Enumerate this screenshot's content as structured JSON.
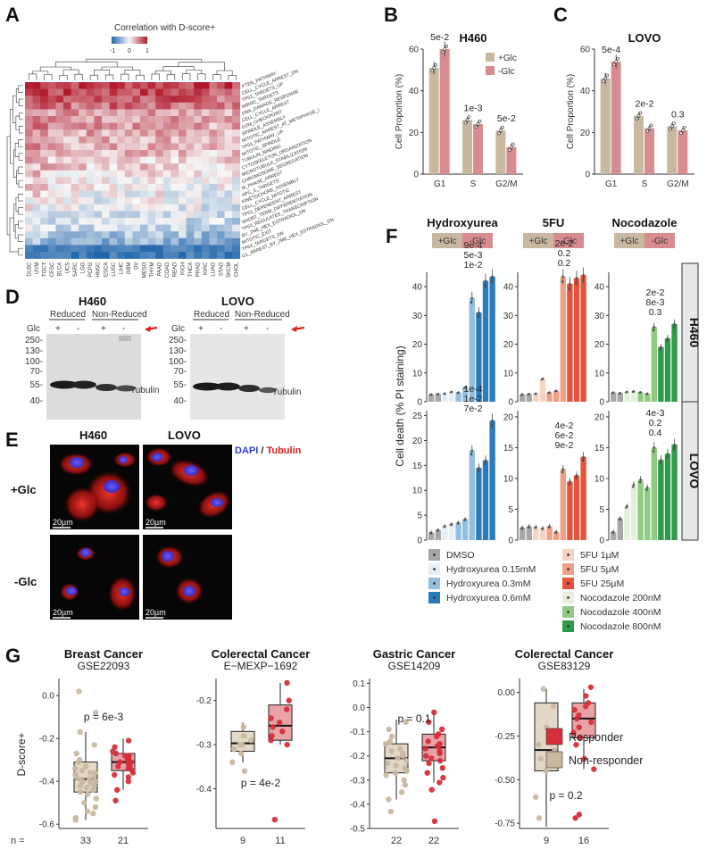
{
  "panel_labels": {
    "A": "A",
    "B": "B",
    "C": "C",
    "D": "D",
    "E": "E",
    "F": "F",
    "G": "G"
  },
  "colors": {
    "glc_pos": "#c9b8a0",
    "glc_neg": "#d98c8f",
    "responder": "#d62f3a",
    "non_responder": "#c9b8a0",
    "box_responder": "#e7a3a6",
    "box_non": "#e3d8c6",
    "heat_pos": "#b2182b",
    "heat_neg": "#2166ac"
  },
  "panelA": {
    "legend_title": "Correlation with D-score+",
    "legend_ticks": [
      "-1",
      "0",
      "1"
    ],
    "rows": [
      "PTEN_PATHWAY",
      "CELL_CYCLE_ARREST_DN",
      "TP53_TARGETS_UP",
      "MIRI92_TARGETS",
      "DNA_DAMAGE_RESPONSE",
      "CELL_CYCLE_ARREST",
      "G2M_CHECKPOINT",
      "SPINDLE_ASSEMBLY",
      "MITOTIC_ARREST_AT_METAPHASE_I",
      "TP53_PATHWAY_UP",
      "MITOTIC_SPINDLE",
      "TUBULIN_BINDING",
      "CYTOSKELETON_ORGANIZATION",
      "MICROTUBULE_STABILIZATION",
      "CHROMOSOME_SEGREGATION",
      "M_PHASE_ARREST",
      "APC_C_TARGETS",
      "KINETOCHORE_ASSEMBLY",
      "CELL_CYCLE_MITOTIC",
      "TP53_DEPENDENT_ARREST",
      "SHORT_TERM_DIFFERENTIATION",
      "TP53_REGULATES_TRANSCRIPTION",
      "BY_2ME_HEX_ESTRADIOL_DN",
      "MITOTIC_EXIT",
      "TP53_TARGETS_DN",
      "G1_ARREST_BY_2ME_HEX_ESTRADIOL_DN"
    ],
    "columns": [
      "DLBC",
      "UVM",
      "TGCT",
      "CESC",
      "BLCA",
      "UCS",
      "SARC",
      "LGG",
      "PCPG",
      "HNSC",
      "ESCA",
      "LUSC",
      "LIHC",
      "GBM",
      "OV",
      "MESO",
      "THYM",
      "PAAD",
      "COAD",
      "READ",
      "KICH",
      "THCA",
      "PRAD",
      "KIRC",
      "LUAD",
      "STAD",
      "SKCM",
      "CHOL"
    ]
  },
  "chart_data": [
    {
      "id": "B",
      "type": "bar",
      "title": "H460",
      "xlabel": "",
      "ylabel": "Cell Proportion (%)",
      "ylim": [
        0,
        60
      ],
      "categories": [
        "G1",
        "S",
        "G2/M"
      ],
      "series": [
        {
          "name": "+Glc",
          "values": [
            51,
            26,
            21
          ]
        },
        {
          "name": "-Glc",
          "values": [
            60,
            24,
            13
          ]
        }
      ],
      "annotations": [
        "5e-2",
        "1e-3",
        "5e-2"
      ]
    },
    {
      "id": "C",
      "type": "bar",
      "title": "LOVO",
      "xlabel": "",
      "ylabel": "Cell Proportion (%)",
      "ylim": [
        0,
        60
      ],
      "categories": [
        "G1",
        "S",
        "G2/M"
      ],
      "series": [
        {
          "name": "+Glc",
          "values": [
            46,
            28,
            23
          ]
        },
        {
          "name": "-Glc",
          "values": [
            54,
            22,
            21
          ]
        }
      ],
      "annotations": [
        "5e-4",
        "2e-2",
        "0.3"
      ]
    },
    {
      "id": "F",
      "type": "bar",
      "ylabel": "Cell death  (% PI staining)",
      "column_titles": [
        "Hydroxyurea",
        "5FU",
        "Nocodazole"
      ],
      "row_labels": [
        "H460",
        "LOVO"
      ],
      "condition_labels": [
        "+Glc",
        "-Glc"
      ],
      "legend_groups": [
        [
          "DMSO",
          "Hydroxyurea 0.15mM",
          "Hydroxyurea 0.3mM",
          "Hydroxyurea 0.6mM"
        ],
        [
          "5FU 1µM",
          "5FU 5µM",
          "5FU 25µM"
        ],
        [
          "Nocodazole 200nM",
          "Nocodazole 400nM",
          "Nocodazole 800nM"
        ]
      ],
      "legend_colors": [
        [
          "#a7a7a7",
          "#e6eef6",
          "#93bfdd",
          "#2a7cbb"
        ],
        [
          "#f6d4c4",
          "#f1a084",
          "#e4533a"
        ],
        [
          "#e3f1dc",
          "#8fcc82",
          "#2d9b4a"
        ]
      ],
      "subplots": [
        {
          "row": 0,
          "col": 0,
          "ylim": [
            0,
            45
          ],
          "ticks": [
            0,
            10,
            20,
            30,
            40
          ],
          "glc_pos": [
            2.5,
            2.8,
            3.2,
            31
          ],
          "glc_neg": [
            2.7,
            3.4,
            5,
            42
          ],
          "extra": [
            36,
            43.5
          ],
          "annotations": [
            "9e-4",
            "5e-3",
            "1e-2"
          ]
        },
        {
          "row": 0,
          "col": 1,
          "ylim": [
            0,
            45
          ],
          "ticks": [
            0,
            10,
            20,
            30,
            40
          ],
          "glc_pos": [
            2.5,
            2.8,
            3.2,
            41
          ],
          "glc_neg": [
            2.7,
            8,
            3.8,
            43
          ],
          "extra": [
            43.5,
            44
          ],
          "annotations": [
            "2e-2",
            "0.2",
            "0.2"
          ]
        },
        {
          "row": 0,
          "col": 2,
          "ylim": [
            0,
            45
          ],
          "ticks": [
            0,
            10,
            20,
            30,
            40
          ],
          "glc_pos": [
            3.2,
            3.4,
            3.3,
            19
          ],
          "glc_neg": [
            3,
            3.6,
            2.8,
            22
          ],
          "extra": [
            26,
            27
          ],
          "annotations": [
            "2e-2",
            "8e-3",
            "0.3"
          ]
        },
        {
          "row": 1,
          "col": 0,
          "ylim": [
            0,
            26
          ],
          "ticks": [
            0,
            5,
            10,
            15,
            20,
            25
          ],
          "glc_pos": [
            1.5,
            2.8,
            3.5,
            14.5
          ],
          "glc_neg": [
            2,
            3.2,
            4.2,
            16
          ],
          "extra": [
            18,
            24
          ],
          "annotations": [
            "1e-4",
            "1e-2",
            "7e-2"
          ]
        },
        {
          "row": 1,
          "col": 1,
          "ylim": [
            0,
            21
          ],
          "ticks": [
            0,
            5,
            10,
            15,
            20
          ],
          "glc_pos": [
            2,
            2.1,
            2.2,
            9.5
          ],
          "glc_neg": [
            2.2,
            1.9,
            1.3,
            10.5
          ],
          "extra": [
            11.5,
            13.5
          ],
          "annotations": [
            "4e-2",
            "6e-2",
            "9e-2"
          ]
        },
        {
          "row": 1,
          "col": 2,
          "ylim": [
            0,
            21
          ],
          "ticks": [
            0,
            5,
            10,
            15,
            20
          ],
          "glc_pos": [
            1.3,
            5.5,
            9.8,
            13
          ],
          "glc_neg": [
            3.5,
            9,
            8.5,
            14
          ],
          "extra": [
            15,
            15.5
          ],
          "annotations": [
            "4e-3",
            "0.2",
            "0.4"
          ]
        }
      ]
    },
    {
      "id": "G",
      "type": "scatter",
      "ylabel": "D-score+",
      "n_label": "n =",
      "legend": [
        "Responder",
        "Non-responder"
      ],
      "subplots": [
        {
          "title": "Breast Cancer",
          "dataset": "GSE22093",
          "ylim": [
            -0.62,
            0.08
          ],
          "ticks": [
            0.0,
            -0.2,
            -0.4,
            -0.6
          ],
          "tick_labels": [
            "0.0",
            "-0.2",
            "-0.4",
            "-0.6"
          ],
          "p": "p = 6e-3",
          "n": [
            "33",
            "21"
          ],
          "non_responder": {
            "median": -0.39,
            "q1": -0.45,
            "q3": -0.31,
            "wmin": -0.58,
            "wmax": -0.17,
            "points": [
              0.02,
              -0.08,
              -0.17,
              -0.23,
              -0.27,
              -0.3,
              -0.31,
              -0.33,
              -0.34,
              -0.35,
              -0.36,
              -0.37,
              -0.38,
              -0.38,
              -0.39,
              -0.39,
              -0.4,
              -0.4,
              -0.41,
              -0.42,
              -0.43,
              -0.44,
              -0.45,
              -0.46,
              -0.48,
              -0.5,
              -0.52,
              -0.54,
              -0.55,
              -0.57,
              -0.58,
              -0.36,
              -0.42
            ]
          },
          "responder": {
            "median": -0.31,
            "q1": -0.35,
            "q3": -0.27,
            "wmin": -0.44,
            "wmax": -0.2,
            "points": [
              -0.21,
              -0.24,
              -0.26,
              -0.27,
              -0.28,
              -0.29,
              -0.3,
              -0.31,
              -0.31,
              -0.32,
              -0.33,
              -0.33,
              -0.34,
              -0.35,
              -0.36,
              -0.37,
              -0.38,
              -0.4,
              -0.44,
              -0.49,
              -0.28
            ]
          }
        },
        {
          "title": "Colerectal Cancer",
          "dataset": "E−MEXP−1692",
          "ylim": [
            -0.49,
            -0.15
          ],
          "ticks": [
            -0.2,
            -0.3,
            -0.4
          ],
          "tick_labels": [
            "-0.2",
            "-0.3",
            "-0.4"
          ],
          "p": "p = 4e-2",
          "n": [
            "9",
            "11"
          ],
          "non_responder": {
            "median": -0.297,
            "q1": -0.315,
            "q3": -0.27,
            "wmin": -0.34,
            "wmax": -0.25,
            "points": [
              -0.26,
              -0.28,
              -0.29,
              -0.3,
              -0.3,
              -0.31,
              -0.32,
              -0.34,
              -0.36
            ]
          },
          "responder": {
            "median": -0.257,
            "q1": -0.29,
            "q3": -0.21,
            "wmin": -0.3,
            "wmax": -0.16,
            "points": [
              -0.16,
              -0.2,
              -0.22,
              -0.24,
              -0.25,
              -0.26,
              -0.27,
              -0.28,
              -0.29,
              -0.3,
              -0.47
            ]
          }
        },
        {
          "title": "Gastric Cancer",
          "dataset": "GSE14209",
          "ylim": [
            -0.5,
            0.12
          ],
          "ticks": [
            0.1,
            0.0,
            -0.1,
            -0.2,
            -0.3,
            -0.4,
            -0.5
          ],
          "tick_labels": [
            "0.1",
            "0.0",
            "-0.1",
            "-0.2",
            "-0.3",
            "-0.4",
            "-0.5"
          ],
          "p": "p = 0.1",
          "n": [
            "22",
            "22"
          ],
          "non_responder": {
            "median": -0.21,
            "q1": -0.27,
            "q3": -0.15,
            "wmin": -0.38,
            "wmax": -0.05,
            "points": [
              -0.06,
              -0.09,
              -0.12,
              -0.14,
              -0.15,
              -0.17,
              -0.18,
              -0.19,
              -0.2,
              -0.21,
              -0.22,
              -0.23,
              -0.24,
              -0.25,
              -0.26,
              -0.27,
              -0.28,
              -0.3,
              -0.32,
              -0.35,
              -0.38,
              -0.43
            ]
          },
          "responder": {
            "median": -0.165,
            "q1": -0.22,
            "q3": -0.11,
            "wmin": -0.31,
            "wmax": -0.01,
            "points": [
              -0.02,
              -0.06,
              -0.09,
              -0.11,
              -0.12,
              -0.14,
              -0.15,
              -0.16,
              -0.16,
              -0.17,
              -0.18,
              -0.19,
              -0.2,
              -0.21,
              -0.22,
              -0.23,
              -0.25,
              -0.27,
              -0.29,
              -0.31,
              -0.34,
              -0.47
            ]
          }
        },
        {
          "title": "Colerectal Cancer",
          "dataset": "GSE83129",
          "ylim": [
            -0.78,
            0.08
          ],
          "ticks": [
            0.0,
            -0.25,
            -0.5,
            -0.75
          ],
          "tick_labels": [
            "0.00",
            "-0.25",
            "-0.50",
            "-0.75"
          ],
          "p": "p = 0.2",
          "n": [
            "9",
            "16"
          ],
          "non_responder": {
            "median": -0.33,
            "q1": -0.45,
            "q3": -0.06,
            "wmin": -0.77,
            "wmax": 0.02,
            "points": [
              0.02,
              -0.08,
              -0.2,
              -0.3,
              -0.33,
              -0.38,
              -0.45,
              -0.6,
              -0.72
            ]
          },
          "responder": {
            "median": -0.15,
            "q1": -0.26,
            "q3": -0.06,
            "wmin": -0.44,
            "wmax": 0.02,
            "points": [
              0.03,
              -0.02,
              -0.06,
              -0.08,
              -0.1,
              -0.13,
              -0.15,
              -0.17,
              -0.2,
              -0.23,
              -0.26,
              -0.3,
              -0.38,
              -0.44,
              -0.7,
              -0.72
            ]
          }
        }
      ]
    }
  ],
  "panelD": {
    "blots": [
      {
        "title": "H460",
        "reduced": "Reduced",
        "non_reduced": "Non-Reduced",
        "glc_label": "Glc",
        "lanes": [
          "+",
          "-",
          "+",
          "-"
        ],
        "band_label": "Tubulin"
      },
      {
        "title": "LOVO",
        "reduced": "Reduced",
        "non_reduced": "Non-Reduced",
        "glc_label": "Glc",
        "lanes": [
          "+",
          "-",
          "+",
          "-"
        ],
        "band_label": "Tubulin"
      }
    ],
    "mw_markers": [
      "250-",
      "130-",
      "100-",
      "70-",
      "55-",
      "40-"
    ]
  },
  "panelE": {
    "col_titles": [
      "H460",
      "LOVO"
    ],
    "row_labels": [
      "+Glc",
      "-Glc"
    ],
    "legend_dapi": "DAPI",
    "legend_sep": " / ",
    "legend_tubulin": "Tubulin",
    "scale_bar": "20µm"
  }
}
